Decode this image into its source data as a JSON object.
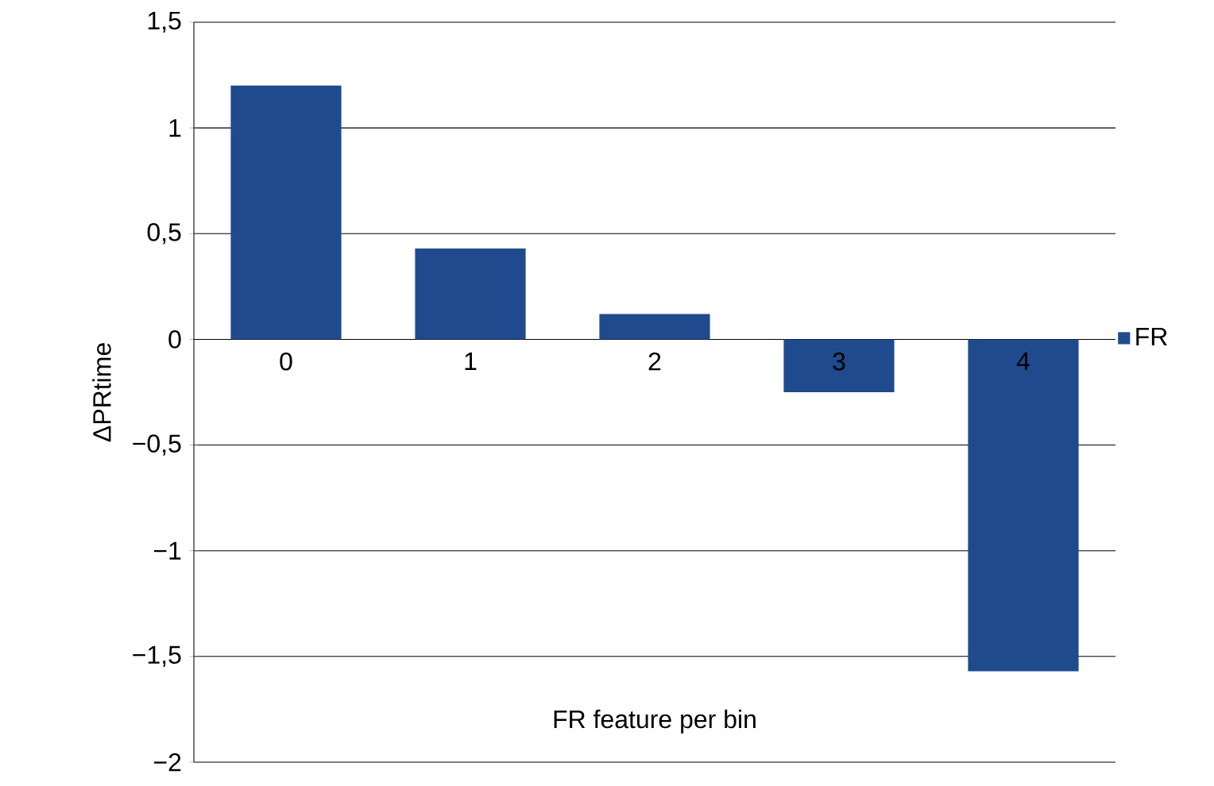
{
  "chart_data": {
    "type": "bar",
    "xlabel": "FR feature per bin",
    "ylabel": "ΔPRtime",
    "categories": [
      "0",
      "1",
      "2",
      "3",
      "4"
    ],
    "series": [
      {
        "name": "FR",
        "color": "#1f4b8e",
        "values": [
          1.2,
          0.43,
          0.12,
          -0.25,
          -1.57
        ]
      }
    ],
    "ylim": [
      -2,
      1.5
    ],
    "yticks": [
      {
        "value": -2,
        "label": "−2"
      },
      {
        "value": -1.5,
        "label": "−1,5"
      },
      {
        "value": -1,
        "label": "−1"
      },
      {
        "value": -0.5,
        "label": "−0,5"
      },
      0,
      {
        "value": 0.5,
        "label": "0,5"
      },
      1,
      {
        "value": 1.5,
        "label": "1,5"
      }
    ],
    "grid": "y",
    "legend": "right"
  }
}
